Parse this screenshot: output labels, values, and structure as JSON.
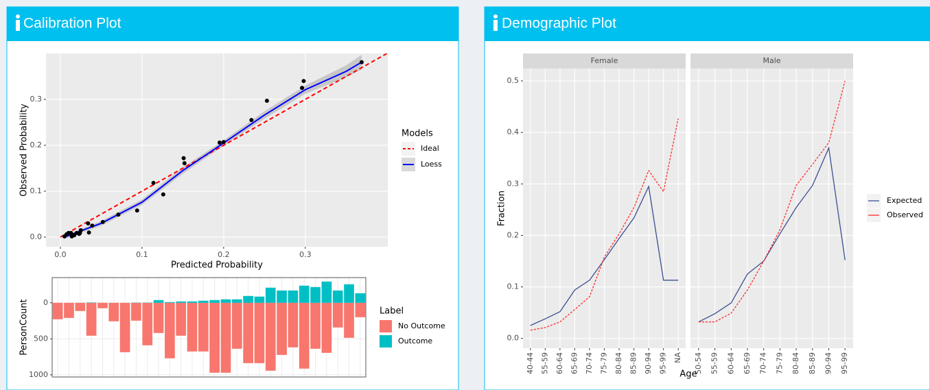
{
  "boxes": [
    {
      "title": "Calibration Plot"
    },
    {
      "title": "Demographic Plot"
    }
  ],
  "chart_data": [
    {
      "type": "scatter",
      "xlabel": "Predicted Probability",
      "ylabel": "Observed Probability",
      "xlim": [
        -0.0176,
        0.401
      ],
      "ylim": [
        -0.021,
        0.4
      ],
      "xticks": [
        {
          "value": 0,
          "label": "0.0"
        },
        0.1,
        0.2,
        0.3
      ],
      "yticks": [
        {
          "value": 0,
          "label": "0.0"
        },
        0.1,
        0.2,
        0.3
      ],
      "grid": true,
      "legend_title": "Models",
      "legend_position": "right",
      "points": {
        "color": "#000000",
        "x": [
          0.005,
          0.0076,
          0.01,
          0.013,
          0.014,
          0.017,
          0.02,
          0.023,
          0.025,
          0.024,
          0.034,
          0.035,
          0.039,
          0.052,
          0.071,
          0.094,
          0.114,
          0.126,
          0.151,
          0.152,
          0.195,
          0.2,
          0.234,
          0.253,
          0.296,
          0.298,
          0.369
        ],
        "values": [
          0.0015,
          0.006,
          0.009,
          0.009,
          0.0015,
          0.004,
          0.009,
          0.007,
          0.015,
          0.009,
          0.03,
          0.01,
          0.025,
          0.033,
          0.049,
          0.058,
          0.118,
          0.093,
          0.172,
          0.161,
          0.206,
          0.207,
          0.255,
          0.297,
          0.325,
          0.34,
          0.381
        ]
      },
      "series": [
        {
          "name": "Ideal",
          "color": "#ff0000",
          "dashed": true,
          "x": [
            0,
            0.4
          ],
          "values": [
            0,
            0.4
          ]
        },
        {
          "name": "Loess",
          "color": "#0000ff",
          "dashed": false,
          "band_color": "#bebebe",
          "x": [
            0.005,
            0.05,
            0.1,
            0.15,
            0.2,
            0.25,
            0.3,
            0.35,
            0.369
          ],
          "values": [
            0,
            0.03,
            0.076,
            0.145,
            0.205,
            0.266,
            0.321,
            0.361,
            0.381
          ],
          "lower": [
            -0.004,
            0.025,
            0.07,
            0.138,
            0.199,
            0.258,
            0.312,
            0.348,
            0.365
          ],
          "upper": [
            0.004,
            0.035,
            0.082,
            0.152,
            0.211,
            0.274,
            0.33,
            0.374,
            0.397
          ]
        }
      ]
    },
    {
      "type": "bar",
      "ylabel": "PersonCount",
      "ylim": [
        1030,
        -350
      ],
      "yticks": [
        0,
        500,
        1000
      ],
      "grid": true,
      "legend_title": "Label",
      "legend_position": "right",
      "categories": [
        null,
        null,
        null,
        null,
        null,
        null,
        null,
        null,
        null,
        null,
        null,
        null,
        null,
        null,
        null,
        null,
        null,
        null,
        null,
        null,
        null,
        null,
        null,
        null,
        null,
        null,
        null,
        null
      ],
      "series": [
        {
          "name": "No Outcome",
          "color": "#f8766d",
          "values": [
            229,
            210,
            114,
            457,
            76,
            257,
            686,
            248,
            590,
            419,
            771,
            457,
            676,
            676,
            971,
            971,
            638,
            838,
            838,
            943,
            724,
            619,
            914,
            638,
            695,
            343,
            486,
            200
          ]
        },
        {
          "name": "Outcome",
          "color": "#00bfc4",
          "values": [
            0,
            0,
            0,
            -5,
            0,
            0,
            0,
            -3,
            -3,
            -38,
            -10,
            -19,
            -19,
            -29,
            -38,
            -48,
            -48,
            -95,
            -86,
            -210,
            -171,
            -171,
            -238,
            -219,
            -295,
            -171,
            -257,
            -133
          ]
        }
      ]
    },
    {
      "type": "line",
      "xlabel": "Age",
      "ylabel": "Fraction",
      "ylim": [
        -0.019,
        0.524
      ],
      "yticks": [
        {
          "value": 0,
          "label": "0.0"
        },
        0.1,
        0.2,
        0.3,
        0.4,
        0.5
      ],
      "grid": true,
      "legend_position": "right",
      "facets": [
        {
          "title": "Female",
          "categories": [
            "40-44",
            "55-59",
            "60-64",
            "65-69",
            "70-74",
            "75-79",
            "80-84",
            "85-89",
            "90-94",
            "95-99",
            "NA"
          ],
          "series": [
            {
              "name": "Expected",
              "color": "#3a4f8f",
              "dashed": false,
              "values": [
                0.025,
                0.038,
                0.052,
                0.094,
                0.113,
                0.153,
                0.194,
                0.234,
                0.295,
                0.113,
                0.113
              ]
            },
            {
              "name": "Observed",
              "color": "#ff2a2a",
              "dashed": true,
              "values": [
                0.016,
                0.021,
                0.032,
                0.056,
                0.081,
                0.158,
                0.203,
                0.254,
                0.326,
                0.285,
                0.427
              ]
            }
          ]
        },
        {
          "title": "Male",
          "categories": [
            "50-54",
            "55-59",
            "60-64",
            "65-69",
            "70-74",
            "75-79",
            "80-84",
            "85-89",
            "90-94",
            "95-99"
          ],
          "series": [
            {
              "name": "Expected",
              "color": "#3a4f8f",
              "dashed": false,
              "values": [
                0.032,
                0.048,
                0.069,
                0.125,
                0.15,
                0.203,
                0.254,
                0.297,
                0.37,
                0.152
              ]
            },
            {
              "name": "Observed",
              "color": "#ff2a2a",
              "dashed": true,
              "values": [
                0.032,
                0.032,
                0.049,
                0.094,
                0.15,
                0.211,
                0.297,
                0.338,
                0.38,
                0.5
              ]
            }
          ]
        }
      ]
    }
  ]
}
